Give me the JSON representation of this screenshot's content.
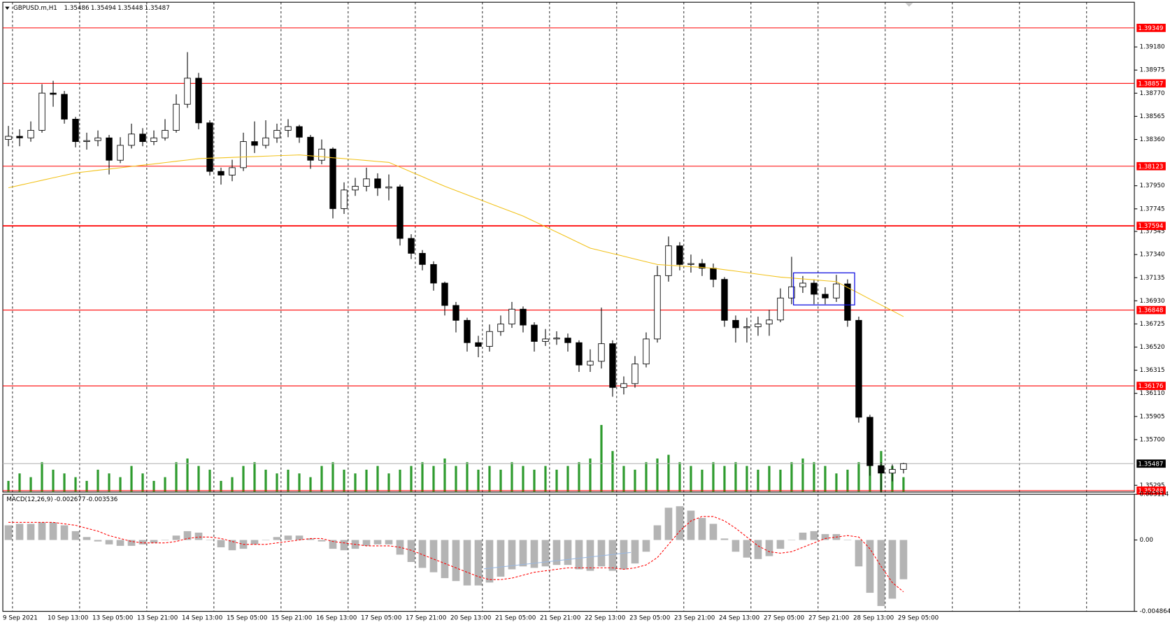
{
  "header": {
    "symbol": "GBPUSD.m,H1",
    "values": [
      1.35486,
      1.35494,
      1.35448,
      1.35487
    ]
  },
  "chart_data": [
    {
      "type": "candlestick",
      "x": [
        "9 Sep 2021",
        null,
        null,
        null,
        "10 Sep 13:00",
        null,
        null,
        null,
        "13 Sep 05:00",
        null,
        null,
        null,
        "13 Sep 21:00",
        null,
        null,
        null,
        "14 Sep 13:00",
        null,
        null,
        null,
        "15 Sep 05:00",
        null,
        null,
        null,
        "15 Sep 21:00",
        null,
        null,
        null,
        "16 Sep 13:00",
        null,
        null,
        null,
        "17 Sep 05:00",
        null,
        null,
        null,
        "17 Sep 21:00",
        null,
        null,
        null,
        "20 Sep 13:00",
        null,
        null,
        null,
        "21 Sep 05:00",
        null,
        null,
        null,
        "21 Sep 21:00",
        null,
        null,
        null,
        "22 Sep 13:00",
        null,
        null,
        null,
        "23 Sep 05:00",
        null,
        null,
        null,
        "23 Sep 21:00",
        null,
        null,
        null,
        "24 Sep 13:00",
        null,
        null,
        null,
        "27 Sep 05:00",
        null,
        null,
        null,
        "27 Sep 21:00",
        null,
        null,
        null,
        "28 Sep 13:00",
        null,
        null,
        null,
        "29 Sep 05:00"
      ],
      "open": [
        1.3836,
        1.38388,
        1.38374,
        1.38441,
        1.38771,
        1.3876,
        1.3854,
        1.38341,
        1.3835,
        1.38374,
        1.38176,
        1.38308,
        1.38408,
        1.38341,
        1.38374,
        1.38441,
        1.38672,
        1.38903,
        1.38507,
        1.38077,
        1.38044,
        1.3811,
        1.38341,
        1.38308,
        1.38374,
        1.38441,
        1.38474,
        1.3838,
        1.38176,
        1.38275,
        1.37747,
        1.37912,
        1.37945,
        1.38011,
        1.3793,
        1.3794,
        1.37483,
        1.37351,
        1.37252,
        1.37087,
        1.36889,
        1.36757,
        1.36559,
        1.36526,
        1.36658,
        1.36724,
        1.36856,
        1.36715,
        1.3657,
        1.36592,
        1.366,
        1.36559,
        1.36361,
        1.36394,
        1.3655,
        1.36162,
        1.36196,
        1.3637,
        1.36592,
        1.37153,
        1.37417,
        1.37252,
        1.3726,
        1.37219,
        1.3712,
        1.36757,
        1.36691,
        1.367,
        1.36724,
        1.3676,
        1.36955,
        1.37054,
        1.37087,
        1.36988,
        1.36955,
        1.3708,
        1.36757,
        1.35898,
        1.35469,
        1.35403,
        1.35436
      ],
      "high": [
        1.3848,
        1.3845,
        1.3852,
        1.3885,
        1.3888,
        1.3879,
        1.3856,
        1.3842,
        1.3844,
        1.384,
        1.3838,
        1.385,
        1.3846,
        1.3844,
        1.3854,
        1.3876,
        1.39134,
        1.3895,
        1.3853,
        1.3811,
        1.3818,
        1.3842,
        1.3852,
        1.3853,
        1.385,
        1.3854,
        1.3849,
        1.384,
        1.3836,
        1.3829,
        1.3798,
        1.3802,
        1.3811,
        1.3806,
        1.3805,
        1.3796,
        1.3752,
        1.3738,
        1.3728,
        1.371,
        1.3692,
        1.3678,
        1.3662,
        1.3672,
        1.368,
        1.3692,
        1.3688,
        1.3674,
        1.3668,
        1.3666,
        1.3664,
        1.3658,
        1.365,
        1.3687,
        1.3658,
        1.3626,
        1.3644,
        1.3665,
        1.3724,
        1.375,
        1.3745,
        1.3734,
        1.373,
        1.3726,
        1.3714,
        1.368,
        1.3678,
        1.3679,
        1.3685,
        1.3704,
        1.3732,
        1.3715,
        1.3712,
        1.3705,
        1.3716,
        1.3712,
        1.3679,
        1.3592,
        1.355,
        1.3548,
        1.35494
      ],
      "low": [
        1.383,
        1.383,
        1.3834,
        1.3842,
        1.3865,
        1.385,
        1.3829,
        1.3827,
        1.383,
        1.3805,
        1.3815,
        1.3828,
        1.383,
        1.3831,
        1.3835,
        1.3842,
        1.3864,
        1.3845,
        1.3804,
        1.3796,
        1.3799,
        1.3808,
        1.3824,
        1.3828,
        1.3833,
        1.3838,
        1.3833,
        1.381,
        1.3814,
        1.3766,
        1.377,
        1.3786,
        1.379,
        1.3786,
        1.3782,
        1.3742,
        1.373,
        1.372,
        1.3702,
        1.368,
        1.3665,
        1.3648,
        1.3643,
        1.3648,
        1.3662,
        1.3669,
        1.3665,
        1.3648,
        1.3653,
        1.3654,
        1.3648,
        1.363,
        1.363,
        1.3633,
        1.3608,
        1.361,
        1.3616,
        1.3634,
        1.3656,
        1.371,
        1.372,
        1.3718,
        1.3715,
        1.3705,
        1.367,
        1.3656,
        1.3656,
        1.3662,
        1.3662,
        1.3674,
        1.369,
        1.37,
        1.369,
        1.369,
        1.3692,
        1.367,
        1.3585,
        1.3538,
        1.3523,
        1.3533,
        1.354
      ],
      "close": [
        1.38388,
        1.38374,
        1.38441,
        1.38771,
        1.3876,
        1.3854,
        1.38341,
        1.3835,
        1.38374,
        1.38176,
        1.38308,
        1.38408,
        1.38341,
        1.38374,
        1.38441,
        1.38672,
        1.38903,
        1.38507,
        1.38077,
        1.38044,
        1.3811,
        1.38341,
        1.38308,
        1.38374,
        1.38441,
        1.38474,
        1.3838,
        1.38176,
        1.38275,
        1.37747,
        1.37912,
        1.37945,
        1.38011,
        1.3793,
        1.3794,
        1.37483,
        1.37351,
        1.37252,
        1.37087,
        1.36889,
        1.36757,
        1.36559,
        1.36526,
        1.36658,
        1.36724,
        1.36856,
        1.36715,
        1.3657,
        1.36592,
        1.366,
        1.36559,
        1.36361,
        1.36394,
        1.3655,
        1.36162,
        1.36196,
        1.3637,
        1.36592,
        1.37153,
        1.37417,
        1.37252,
        1.3726,
        1.37219,
        1.3712,
        1.36757,
        1.36691,
        1.367,
        1.36724,
        1.3676,
        1.36955,
        1.37054,
        1.37087,
        1.36988,
        1.36955,
        1.3708,
        1.36757,
        1.35898,
        1.35469,
        1.35403,
        1.35436,
        1.35487
      ],
      "up_color": "#ffffff",
      "down_color": "#000000",
      "ylim": [
        1.35235,
        1.39596
      ],
      "yticks": [
        {
          "value": 1.3918,
          "label": "1.39180"
        },
        1.38975,
        {
          "value": 1.3877,
          "label": "1.38770"
        },
        1.38565,
        {
          "value": 1.3836,
          "label": "1.38360"
        },
        {
          "value": 1.3795,
          "label": "1.37950"
        },
        1.37745,
        1.37545,
        {
          "value": 1.3734,
          "label": "1.37340"
        },
        1.37135,
        {
          "value": 1.3693,
          "label": "1.36930"
        },
        1.36725,
        {
          "value": 1.3652,
          "label": "1.36520"
        },
        1.36315,
        {
          "value": 1.3611,
          "label": "1.36110"
        },
        1.35905,
        {
          "value": 1.357,
          "label": "1.35700"
        },
        1.35295
      ],
      "grid": true,
      "levels": {
        "color": "#ff0000",
        "values": [
          1.39349,
          1.38857,
          1.38123,
          1.37594,
          1.36848,
          1.36176,
          1.35248
        ]
      },
      "moving_average": {
        "color": "#f2c21b",
        "values": [
          1.37932,
          1.37954,
          1.37976,
          1.37998,
          1.3802,
          1.38042,
          1.38064,
          1.38075,
          1.38087,
          1.38098,
          1.38109,
          1.38121,
          1.38132,
          1.38143,
          1.38155,
          1.38167,
          1.38178,
          1.3819,
          1.38194,
          1.38197,
          1.38201,
          1.38205,
          1.38208,
          1.38212,
          1.38216,
          1.38219,
          1.38223,
          1.38215,
          1.38207,
          1.38198,
          1.3819,
          1.38182,
          1.38174,
          1.38165,
          1.38157,
          1.38115,
          1.38072,
          1.3803,
          1.37987,
          1.37945,
          1.37907,
          1.37869,
          1.37832,
          1.37794,
          1.37756,
          1.37719,
          1.37681,
          1.37634,
          1.37586,
          1.37539,
          1.37492,
          1.37444,
          1.37397,
          1.37373,
          1.37349,
          1.37325,
          1.373,
          1.37276,
          1.37252,
          1.37245,
          1.37239,
          1.37232,
          1.37226,
          1.37219,
          1.37206,
          1.37193,
          1.3718,
          1.37166,
          1.37153,
          1.3714,
          1.37132,
          1.37124,
          1.37116,
          1.37108,
          1.371,
          1.37048,
          1.36997,
          1.36945,
          1.36893,
          1.36842,
          1.3679
        ]
      },
      "volume": {
        "color": "#2e9b2e",
        "values": [
          600,
          1000,
          800,
          1600,
          1200,
          1000,
          800,
          600,
          1200,
          1000,
          800,
          1400,
          1000,
          600,
          800,
          1600,
          1800,
          1400,
          1200,
          600,
          800,
          1400,
          1600,
          1200,
          1000,
          1200,
          1000,
          800,
          1400,
          1600,
          1200,
          1000,
          1200,
          1400,
          1000,
          1200,
          1400,
          1600,
          1400,
          1800,
          1400,
          1600,
          1200,
          1400,
          1200,
          1600,
          1400,
          1200,
          1400,
          1200,
          1400,
          1600,
          1800,
          3600,
          2200,
          1400,
          1200,
          1600,
          1800,
          2000,
          1600,
          1400,
          1200,
          1600,
          1400,
          1600,
          1400,
          1200,
          1400,
          1200,
          1600,
          1800,
          1600,
          1400,
          1000,
          1200,
          1600,
          2000,
          2200,
          1400,
          800
        ]
      }
    },
    {
      "type": "macd",
      "title": "MACD(12,26,9)",
      "ylim": [
        -0.004864,
        0.003114
      ],
      "yticks": [
        0.003114,
        {
          "value": 0,
          "label": "0.00"
        },
        -0.004864
      ],
      "histogram": {
        "color": "#b4b4b4",
        "values": [
          0.001,
          0.0011,
          0.0011,
          0.0012,
          0.0012,
          0.001,
          0.0006,
          0.0002,
          -0.0001,
          -0.0003,
          -0.0004,
          -0.0004,
          -0.0003,
          -0.0002,
          0.0,
          0.0003,
          0.0006,
          0.0005,
          0.0,
          -0.0005,
          -0.0007,
          -0.0006,
          -0.0003,
          0.0,
          0.0002,
          0.0003,
          0.0003,
          0.0001,
          -0.0001,
          -0.0006,
          -0.0007,
          -0.0006,
          -0.0004,
          -0.0003,
          -0.0003,
          -0.001,
          -0.0015,
          -0.0019,
          -0.0022,
          -0.0026,
          -0.0028,
          -0.0031,
          -0.0031,
          -0.0029,
          -0.0025,
          -0.002,
          -0.0018,
          -0.0019,
          -0.0018,
          -0.0017,
          -0.0017,
          -0.002,
          -0.0021,
          -0.0018,
          -0.0021,
          -0.002,
          -0.0016,
          -0.0008,
          0.001,
          0.0022,
          0.0023,
          0.002,
          0.0015,
          0.0011,
          0.0001,
          -0.0008,
          -0.0012,
          -0.0013,
          -0.0011,
          -0.0006,
          0.0,
          0.0005,
          0.0006,
          0.0004,
          0.0004,
          0.0,
          -0.0018,
          -0.0036,
          -0.0045,
          -0.004,
          -0.002677
        ]
      },
      "signal": {
        "color": "#ff0000",
        "values": [
          0.0012,
          0.0012,
          0.0012,
          0.0012,
          0.0012,
          0.0011,
          0.001,
          0.0008,
          0.0006,
          0.0003,
          0.0001,
          -0.0001,
          -0.0002,
          -0.0002,
          -0.0002,
          -0.0001,
          0.0001,
          0.0002,
          0.0002,
          0.0001,
          -0.0001,
          -0.0003,
          -0.0003,
          -0.0003,
          -0.0002,
          -0.0001,
          0.0,
          0.0001,
          0.0001,
          -0.0001,
          -0.0002,
          -0.0003,
          -0.0004,
          -0.0004,
          -0.0004,
          -0.0005,
          -0.0007,
          -0.001,
          -0.0013,
          -0.0016,
          -0.0019,
          -0.0022,
          -0.0025,
          -0.0027,
          -0.0027,
          -0.0026,
          -0.0024,
          -0.0022,
          -0.0021,
          -0.002,
          -0.0019,
          -0.0019,
          -0.0019,
          -0.0019,
          -0.0019,
          -0.002,
          -0.0019,
          -0.0017,
          -0.0012,
          -0.0003,
          0.0006,
          0.0013,
          0.0016,
          0.0016,
          0.0013,
          0.0008,
          0.0002,
          -0.0004,
          -0.0008,
          -0.0009,
          -0.0008,
          -0.0005,
          -0.0002,
          0.0001,
          0.0002,
          0.0003,
          0.0002,
          -0.0006,
          -0.0018,
          -0.0029,
          -0.003536
        ]
      }
    }
  ]
}
